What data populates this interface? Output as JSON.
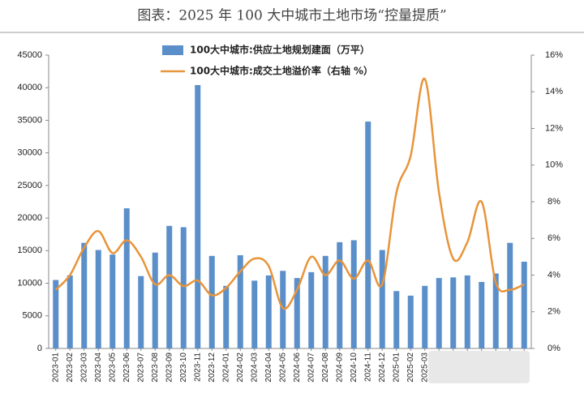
{
  "chart_data": {
    "type": "bar-line",
    "title": "图表：2025 年 100 大中城市土地市场“控量提质”",
    "categories": [
      "2023-01",
      "2023-02",
      "2023-03",
      "2023-04",
      "2023-05",
      "2023-06",
      "2023-07",
      "2023-08",
      "2023-09",
      "2023-10",
      "2023-11",
      "2023-12",
      "2024-01",
      "2024-02",
      "2024-03",
      "2024-04",
      "2024-05",
      "2024-06",
      "2024-07",
      "2024-08",
      "2024-09",
      "2024-10",
      "2024-11",
      "2024-12",
      "2025-01",
      "2025-02",
      "2025-03",
      null,
      null,
      null,
      null,
      null,
      null,
      null
    ],
    "series": [
      {
        "name": "100大中城市:供应土地规划建面（万平）",
        "color": "#5b8fc9",
        "type": "bar",
        "values": [
          10500,
          11200,
          16200,
          15100,
          14400,
          21500,
          11100,
          14700,
          18800,
          18600,
          40400,
          14200,
          9600,
          14300,
          10400,
          11200,
          11900,
          10800,
          11700,
          14200,
          16300,
          16600,
          34800,
          15100,
          8800,
          8100,
          9600,
          10800,
          10900,
          11200,
          10200,
          11500,
          16200,
          13300
        ]
      },
      {
        "name": "100大中城市:成交土地溢价率（右轴 %）",
        "color": "#e8943a",
        "type": "line",
        "axis": "y2",
        "values": [
          3.2,
          4.0,
          5.5,
          6.4,
          5.2,
          5.9,
          5.0,
          3.5,
          4.0,
          3.4,
          3.7,
          2.9,
          3.3,
          4.2,
          4.9,
          4.5,
          2.2,
          3.2,
          5.0,
          4.0,
          4.8,
          3.8,
          4.8,
          3.5,
          8.5,
          10.5,
          14.7,
          8.5,
          4.9,
          5.8,
          8.0,
          3.6,
          3.2,
          3.5
        ]
      }
    ],
    "ylim": [
      0,
      45000
    ],
    "yticks": [
      0,
      5000,
      10000,
      15000,
      20000,
      25000,
      30000,
      35000,
      40000,
      45000
    ],
    "y2lim": [
      0,
      16
    ],
    "y2ticks": [
      {
        "value": 0,
        "label": "0%"
      },
      {
        "value": 2,
        "label": "2%"
      },
      {
        "value": 4,
        "label": "4%"
      },
      {
        "value": 6,
        "label": "6%"
      },
      {
        "value": 8,
        "label": "8%"
      },
      {
        "value": 10,
        "label": "10%"
      },
      {
        "value": 12,
        "label": "12%"
      },
      {
        "value": 14,
        "label": "14%"
      },
      {
        "value": 16,
        "label": "16%"
      }
    ]
  }
}
